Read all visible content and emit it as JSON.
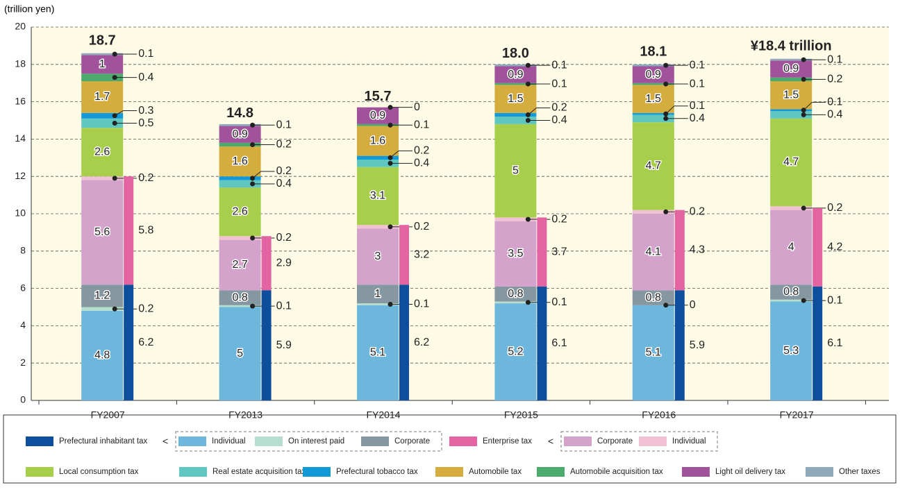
{
  "chart_data": {
    "type": "stacked-bar",
    "ylabel": "(trillion yen)",
    "categories": [
      "FY2007",
      "FY2013",
      "FY2014",
      "FY2015",
      "FY2016",
      "FY2017"
    ],
    "ylim": [
      0,
      20
    ],
    "yticks": [
      0,
      2,
      4,
      6,
      8,
      10,
      12,
      14,
      16,
      18,
      20
    ],
    "grid": true,
    "series": [
      {
        "name": "Individual",
        "color": "#6db6dc",
        "values": [
          4.8,
          5.0,
          5.1,
          5.2,
          5.1,
          5.3
        ]
      },
      {
        "name": "On interest paid",
        "color": "#b5ddd0",
        "values": [
          0.2,
          0.1,
          0.1,
          0.1,
          0.0,
          0.1
        ]
      },
      {
        "name": "Corporate",
        "color": "#8597a1",
        "values": [
          1.2,
          0.8,
          1.0,
          0.8,
          0.8,
          0.8
        ]
      },
      {
        "name": "Corporate",
        "color": "#d3a3cc",
        "values": [
          5.6,
          2.7,
          3.0,
          3.5,
          4.1,
          4.0
        ]
      },
      {
        "name": "Individual",
        "color": "#f1c1d4",
        "values": [
          0.2,
          0.2,
          0.2,
          0.2,
          0.2,
          0.2
        ]
      },
      {
        "name": "Local consumption tax",
        "color": "#a7cf4c",
        "values": [
          2.6,
          2.6,
          3.1,
          5.0,
          4.7,
          4.7
        ]
      },
      {
        "name": "Real estate acquisition tax",
        "color": "#5fc6c0",
        "values": [
          0.5,
          0.4,
          0.4,
          0.4,
          0.4,
          0.4
        ]
      },
      {
        "name": "Prefectural tobacco tax",
        "color": "#139ad6",
        "values": [
          0.3,
          0.2,
          0.2,
          0.2,
          0.1,
          0.1
        ]
      },
      {
        "name": "Automobile tax",
        "color": "#d5ad3e",
        "values": [
          1.7,
          1.6,
          1.6,
          1.5,
          1.5,
          1.5
        ]
      },
      {
        "name": "Automobile acquisition tax",
        "color": "#4aab6c",
        "values": [
          0.4,
          0.2,
          0.1,
          0.1,
          0.1,
          0.2
        ]
      },
      {
        "name": "Light oil delivery tax",
        "color": "#a0529a",
        "values": [
          1.0,
          0.9,
          0.9,
          0.9,
          0.9,
          0.9
        ]
      },
      {
        "name": "Other taxes",
        "color": "#8fa9bb",
        "values": [
          0.1,
          0.1,
          0.0,
          0.1,
          0.1,
          0.1
        ]
      }
    ],
    "side_series": [
      {
        "name": "Prefectural inhabitant tax",
        "color": "#0d4f9c",
        "values": [
          6.2,
          5.9,
          6.2,
          6.1,
          5.9,
          6.1
        ]
      },
      {
        "name": "Enterprise tax",
        "color": "#e464a3",
        "values": [
          5.8,
          2.9,
          3.2,
          3.7,
          4.3,
          4.2
        ]
      }
    ],
    "totals": {
      "values": [
        18.7,
        14.8,
        15.7,
        18.0,
        18.1,
        18.4
      ],
      "value_labels": [
        "18.7",
        "14.8",
        "15.7",
        "18.0",
        "18.1",
        "¥18.4 trillion"
      ]
    }
  }
}
